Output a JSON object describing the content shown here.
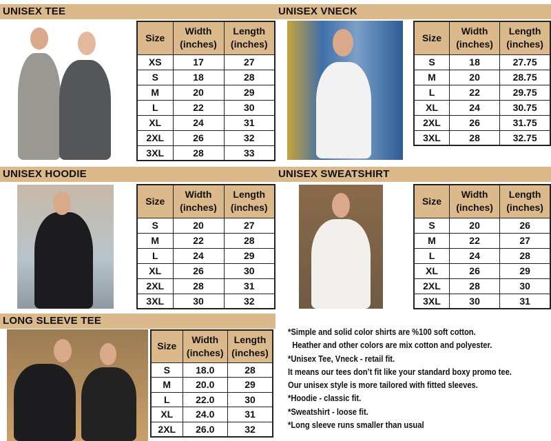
{
  "sections": [
    {
      "title": "UNISEX TEE",
      "headers": [
        "Size",
        "Width\n(inches)",
        "Length\n(inches)"
      ],
      "rows": [
        [
          "XS",
          "17",
          "27"
        ],
        [
          "S",
          "18",
          "28"
        ],
        [
          "M",
          "20",
          "29"
        ],
        [
          "L",
          "22",
          "30"
        ],
        [
          "XL",
          "24",
          "31"
        ],
        [
          "2XL",
          "26",
          "32"
        ],
        [
          "3XL",
          "28",
          "33"
        ]
      ]
    },
    {
      "title": "UNISEX VNECK",
      "headers": [
        "Size",
        "Width\n(inches)",
        "Length\n(inches)"
      ],
      "rows": [
        [
          "S",
          "18",
          "27.75"
        ],
        [
          "M",
          "20",
          "28.75"
        ],
        [
          "L",
          "22",
          "29.75"
        ],
        [
          "XL",
          "24",
          "30.75"
        ],
        [
          "2XL",
          "26",
          "31.75"
        ],
        [
          "3XL",
          "28",
          "32.75"
        ]
      ]
    },
    {
      "title": "UNISEX HOODIE",
      "headers": [
        "Size",
        "Width\n(inches)",
        "Length\n(inches)"
      ],
      "rows": [
        [
          "S",
          "20",
          "27"
        ],
        [
          "M",
          "22",
          "28"
        ],
        [
          "L",
          "24",
          "29"
        ],
        [
          "XL",
          "26",
          "30"
        ],
        [
          "2XL",
          "28",
          "31"
        ],
        [
          "3XL",
          "30",
          "32"
        ]
      ]
    },
    {
      "title": "UNISEX SWEATSHIRT",
      "headers": [
        "Size",
        "Width\n(inches)",
        "Length\n(inches)"
      ],
      "rows": [
        [
          "S",
          "20",
          "26"
        ],
        [
          "M",
          "22",
          "27"
        ],
        [
          "L",
          "24",
          "28"
        ],
        [
          "XL",
          "26",
          "29"
        ],
        [
          "2XL",
          "28",
          "30"
        ],
        [
          "3XL",
          "30",
          "31"
        ]
      ]
    },
    {
      "title": "LONG SLEEVE TEE",
      "headers": [
        "Size",
        "Width\n(inches)",
        "Length\n(inches)"
      ],
      "rows": [
        [
          "S",
          "18.0",
          "28"
        ],
        [
          "M",
          "20.0",
          "29"
        ],
        [
          "L",
          "22.0",
          "30"
        ],
        [
          "XL",
          "24.0",
          "31"
        ],
        [
          "2XL",
          "26.0",
          "32"
        ]
      ]
    }
  ],
  "notes": [
    "*Simple and solid color shirts are %100 soft cotton.",
    "  Heather and other colors are mix cotton and polyester.",
    "*Unisex Tee, Vneck - retail fit.",
    "It means our tees don’t fit like your standard boxy promo tee.",
    "Our unisex style is more tailored with fitted sleeves.",
    "*Hoodie - classic fit.",
    "*Sweatshirt - loose fit.",
    "*Long sleeve runs smaller than usual"
  ],
  "colors": {
    "header": "#dcb98b",
    "border": "#222222"
  }
}
